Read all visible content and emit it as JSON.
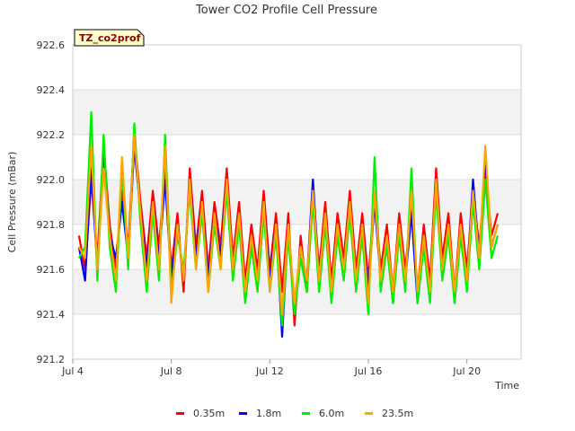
{
  "chart_data": {
    "type": "line",
    "title": "Tower CO2 Profile Cell Pressure",
    "badge": "TZ_co2prof",
    "xlabel": "Time",
    "ylabel": "Cell Pressure (mBar)",
    "ylim": [
      921.2,
      922.6
    ],
    "yticks": [
      921.2,
      921.4,
      921.6,
      921.8,
      922.0,
      922.2,
      922.4,
      922.6
    ],
    "ytick_labels": [
      "921.2",
      "921.4",
      "921.6",
      "921.8",
      "922.0",
      "922.2",
      "922.4",
      "922.6"
    ],
    "xlim_day": [
      4,
      22.2
    ],
    "xticks_day": [
      4,
      8,
      12,
      16,
      20
    ],
    "xtick_labels": [
      "Jul 4",
      "Jul 8",
      "Jul 12",
      "Jul 16",
      "Jul 20"
    ],
    "grid": true,
    "legend_position": "bottom",
    "series": [
      {
        "name": "0.35m",
        "color": "#ff0000"
      },
      {
        "name": "1.8m",
        "color": "#0000ff"
      },
      {
        "name": "6.0m",
        "color": "#00ee00"
      },
      {
        "name": "23.5m",
        "color": "#ffa500"
      }
    ],
    "x_day": [
      4.25,
      4.5,
      4.75,
      5.0,
      5.25,
      5.5,
      5.75,
      6.0,
      6.25,
      6.5,
      6.75,
      7.0,
      7.25,
      7.5,
      7.75,
      8.0,
      8.25,
      8.5,
      8.75,
      9.0,
      9.25,
      9.5,
      9.75,
      10.0,
      10.25,
      10.5,
      10.75,
      11.0,
      11.25,
      11.5,
      11.75,
      12.0,
      12.25,
      12.5,
      12.75,
      13.0,
      13.25,
      13.5,
      13.75,
      14.0,
      14.25,
      14.5,
      14.75,
      15.0,
      15.25,
      15.5,
      15.75,
      16.0,
      16.25,
      16.5,
      16.75,
      17.0,
      17.25,
      17.5,
      17.75,
      18.0,
      18.25,
      18.5,
      18.75,
      19.0,
      19.25,
      19.5,
      19.75,
      20.0,
      20.25,
      20.5,
      20.75,
      21.0,
      21.25
    ],
    "values": [
      [
        921.75,
        921.6,
        922.0,
        921.65,
        922.15,
        921.8,
        921.6,
        921.95,
        921.7,
        922.2,
        921.9,
        921.65,
        921.95,
        921.7,
        922.05,
        921.6,
        921.85,
        921.5,
        922.05,
        921.7,
        921.95,
        921.6,
        921.9,
        921.7,
        922.05,
        921.65,
        921.9,
        921.55,
        921.8,
        921.6,
        921.95,
        921.6,
        921.85,
        921.5,
        921.85,
        921.35,
        921.75,
        921.5,
        921.95,
        921.6,
        921.9,
        921.55,
        921.85,
        921.65,
        921.95,
        921.6,
        921.85,
        921.55,
        921.95,
        921.6,
        921.8,
        921.5,
        921.85,
        921.6,
        921.9,
        921.5,
        921.8,
        921.55,
        922.05,
        921.65,
        921.85,
        921.5,
        921.85,
        921.6,
        921.95,
        921.7,
        922.05,
        921.75,
        921.85
      ],
      [
        921.7,
        921.55,
        922.05,
        921.6,
        922.1,
        921.75,
        921.65,
        921.9,
        921.65,
        922.15,
        921.85,
        921.6,
        921.9,
        921.65,
        922.0,
        921.55,
        921.8,
        921.55,
        922.0,
        921.65,
        921.9,
        921.55,
        921.85,
        921.65,
        922.0,
        921.6,
        921.85,
        921.5,
        921.75,
        921.55,
        921.9,
        921.55,
        921.8,
        921.3,
        921.8,
        921.4,
        921.7,
        921.55,
        922.0,
        921.55,
        921.85,
        921.5,
        921.8,
        921.6,
        921.9,
        921.55,
        921.8,
        921.5,
        921.9,
        921.55,
        921.75,
        921.45,
        921.8,
        921.55,
        921.85,
        921.45,
        921.75,
        921.5,
        922.0,
        921.6,
        921.8,
        921.45,
        921.8,
        921.55,
        922.0,
        921.65,
        922.1,
        921.7,
        921.8
      ],
      [
        921.65,
        921.7,
        922.3,
        921.55,
        922.2,
        921.7,
        921.5,
        922.05,
        921.6,
        922.25,
        921.8,
        921.5,
        921.85,
        921.55,
        922.2,
        921.5,
        921.75,
        921.6,
        921.95,
        921.6,
        921.85,
        921.5,
        921.8,
        921.6,
        921.95,
        921.55,
        921.8,
        921.45,
        921.7,
        921.5,
        921.85,
        921.5,
        921.75,
        921.35,
        921.75,
        921.4,
        921.65,
        921.5,
        921.9,
        921.5,
        921.8,
        921.45,
        921.75,
        921.55,
        921.85,
        921.5,
        921.75,
        921.4,
        922.1,
        921.5,
        921.7,
        921.45,
        921.75,
        921.5,
        922.05,
        921.45,
        921.7,
        921.45,
        921.95,
        921.55,
        921.75,
        921.45,
        921.75,
        921.5,
        921.9,
        921.6,
        922.0,
        921.65,
        921.75
      ],
      [
        921.7,
        921.65,
        922.15,
        921.6,
        922.05,
        921.75,
        921.55,
        922.1,
        921.65,
        922.2,
        921.85,
        921.55,
        921.9,
        921.6,
        922.15,
        921.45,
        921.8,
        921.55,
        922.0,
        921.6,
        921.9,
        921.5,
        921.85,
        921.6,
        922.0,
        921.6,
        921.85,
        921.5,
        921.75,
        921.55,
        921.9,
        921.5,
        921.8,
        921.4,
        921.8,
        921.45,
        921.7,
        921.55,
        921.95,
        921.55,
        921.85,
        921.5,
        921.8,
        921.6,
        921.9,
        921.55,
        921.8,
        921.45,
        921.95,
        921.55,
        921.75,
        921.5,
        921.8,
        921.55,
        921.95,
        921.5,
        921.75,
        921.5,
        922.0,
        921.6,
        921.8,
        921.5,
        921.8,
        921.55,
        921.95,
        921.65,
        922.15,
        921.7,
        921.8
      ]
    ]
  }
}
